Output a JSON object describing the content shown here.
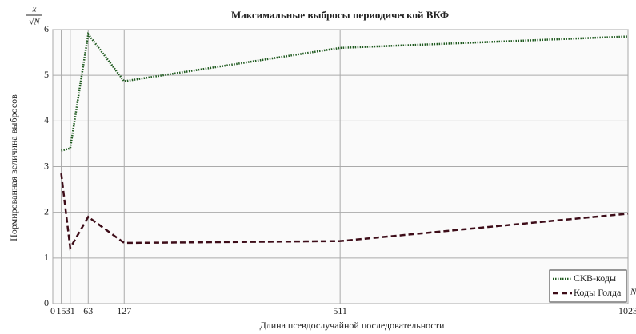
{
  "chart_data": {
    "type": "line",
    "title": "Максимальные выбросы периодической ВКФ",
    "x_label": "Длина псевдослучайной последовательности",
    "y_label": "Нормированная величина выбросов",
    "y_unit": {
      "numerator": "x",
      "denominator": "√N"
    },
    "x_unit": "N",
    "xlim": [
      0,
      1023
    ],
    "xticks": [
      0,
      15,
      31,
      63,
      127,
      511,
      1023
    ],
    "ylim": [
      0,
      6
    ],
    "yticks": [
      0,
      1,
      2,
      3,
      4,
      5,
      6
    ],
    "grid": true,
    "legend": "bottom-right",
    "series": [
      {
        "name": "СКВ-коды",
        "color": "#1f5a1f",
        "line_style": "dotted",
        "x": [
          15,
          31,
          63,
          127,
          511,
          1023
        ],
        "values": [
          3.35,
          3.4,
          5.9,
          4.87,
          5.6,
          5.85
        ]
      },
      {
        "name": "Коды Голда",
        "color": "#3d0c18",
        "line_style": "dashed",
        "x": [
          15,
          31,
          63,
          127,
          511,
          1023
        ],
        "values": [
          2.85,
          1.22,
          1.9,
          1.33,
          1.37,
          1.97
        ]
      }
    ]
  }
}
